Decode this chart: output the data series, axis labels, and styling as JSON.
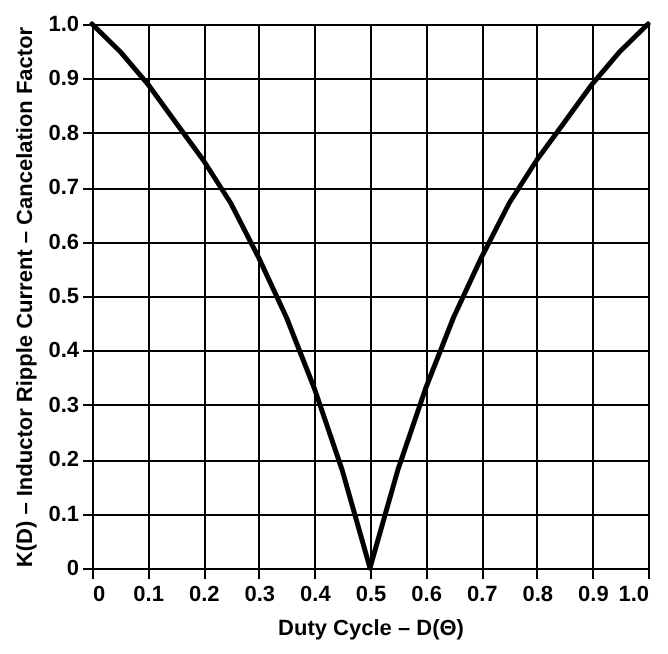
{
  "chart_data": {
    "type": "line",
    "xlabel": "Duty Cycle – D(Θ)",
    "ylabel": "K(D) – Inductor Ripple Current – Cancelation Factor",
    "x": [
      0,
      0.05,
      0.1,
      0.15,
      0.2,
      0.25,
      0.3,
      0.35,
      0.4,
      0.45,
      0.5,
      0.55,
      0.6,
      0.65,
      0.7,
      0.75,
      0.8,
      0.85,
      0.9,
      0.95,
      1
    ],
    "series": [
      {
        "color": "#000000",
        "values": [
          1,
          0.95,
          0.89,
          0.82,
          0.75,
          0.67,
          0.57,
          0.46,
          0.33,
          0.18,
          0,
          0.18,
          0.33,
          0.46,
          0.57,
          0.67,
          0.75,
          0.82,
          0.89,
          0.95,
          1
        ]
      }
    ],
    "xlim": [
      0,
      1
    ],
    "ylim": [
      0,
      1
    ],
    "xticks": [
      0,
      0.1,
      0.2,
      0.3,
      0.4,
      0.5,
      0.6,
      0.7,
      0.8,
      0.9,
      {
        "value": 1,
        "label": "1.0"
      }
    ],
    "yticks": [
      0,
      0.1,
      0.2,
      0.3,
      0.4,
      0.5,
      0.6,
      0.7,
      0.8,
      0.9,
      {
        "value": 1,
        "label": "1.0"
      }
    ],
    "grid": true,
    "line_style": "solid"
  }
}
